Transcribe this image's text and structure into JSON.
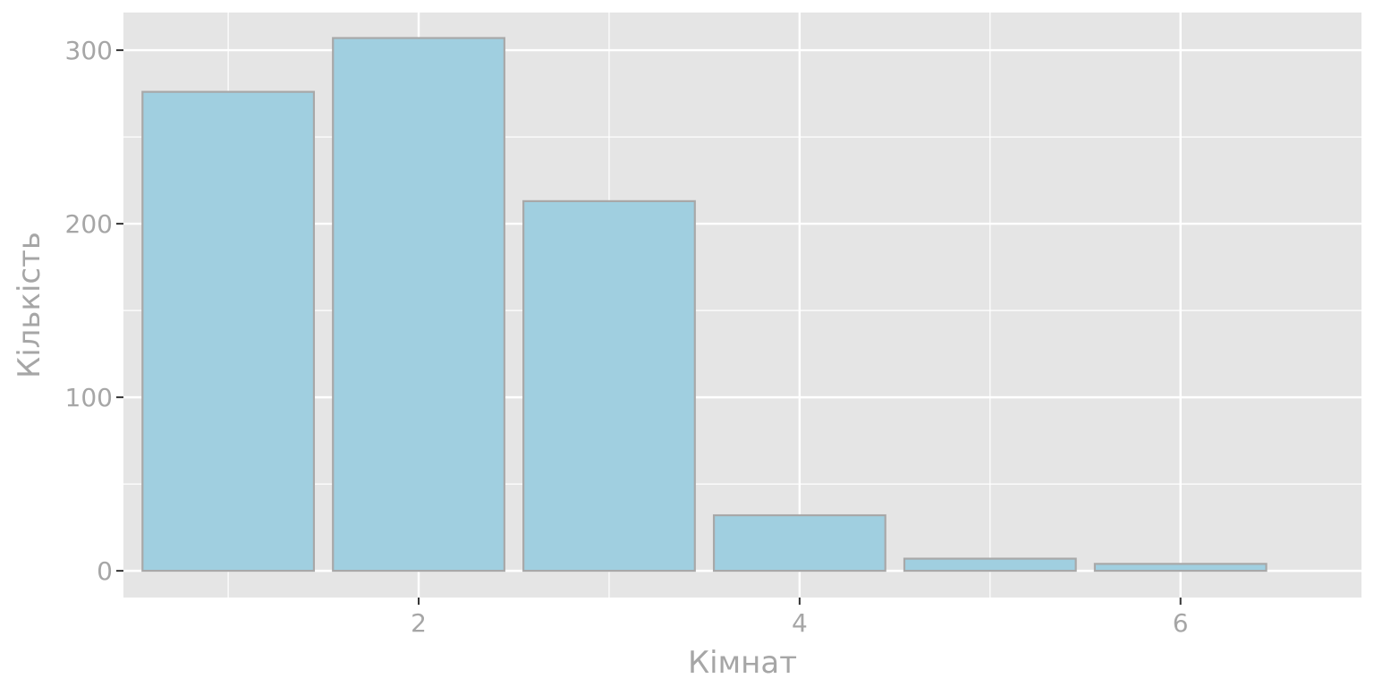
{
  "chart_data": {
    "type": "bar",
    "x": [
      1,
      2,
      3,
      4,
      5,
      6
    ],
    "values": [
      276,
      307,
      213,
      32,
      7,
      4
    ],
    "xlabel": "Кімнат",
    "ylabel": "Кількість",
    "xlim": [
      0.45,
      6.95
    ],
    "ylim": [
      -15.4,
      321.7
    ],
    "x_ticks": [
      2,
      4,
      6
    ],
    "x_tick_labels": [
      "2",
      "4",
      "6"
    ],
    "y_ticks": [
      0,
      100,
      200,
      300
    ],
    "y_tick_labels": [
      "0",
      "100",
      "200",
      "300"
    ],
    "grid": true,
    "colors": {
      "panel_background": "#e5e5e5",
      "grid": "#ffffff",
      "bar_fill": "#a0cfe0",
      "bar_stroke": "#a8a8a8",
      "text": "#a6a6a6",
      "tick_mark": "#333333"
    }
  }
}
